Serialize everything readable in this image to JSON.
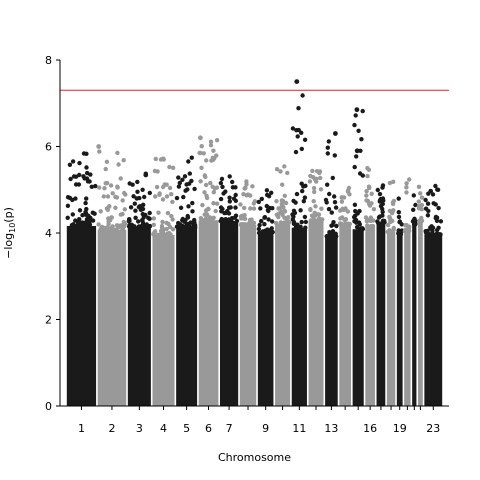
{
  "chart_data": {
    "type": "scatter",
    "subtype": "manhattan",
    "title": "",
    "xlabel": "Chromosome",
    "ylabel": "−log10(p)",
    "ylim": [
      0,
      8
    ],
    "yticks": [
      0,
      2,
      4,
      6,
      8
    ],
    "significance_threshold": 7.3,
    "threshold_color": "#d62728",
    "colors": [
      "#1a1a1a",
      "#999999"
    ],
    "grid": false,
    "legend": "none",
    "chromosome_tick_labels": [
      "1",
      "2",
      "3",
      "4",
      "5",
      "6",
      "7",
      "9",
      "11",
      "13",
      "16",
      "19",
      "23"
    ],
    "chromosomes": [
      {
        "chr": "1",
        "length": 248,
        "color": "#1a1a1a",
        "max": 5.85
      },
      {
        "chr": "2",
        "length": 242,
        "color": "#999999",
        "max": 6.0
      },
      {
        "chr": "3",
        "length": 198,
        "color": "#1a1a1a",
        "max": 5.4
      },
      {
        "chr": "4",
        "length": 190,
        "color": "#999999",
        "max": 5.9
      },
      {
        "chr": "5",
        "length": 181,
        "color": "#1a1a1a",
        "max": 5.75
      },
      {
        "chr": "6",
        "length": 171,
        "color": "#999999",
        "max": 6.2
      },
      {
        "chr": "7",
        "length": 159,
        "color": "#1a1a1a",
        "max": 5.5
      },
      {
        "chr": "8",
        "length": 145,
        "color": "#999999",
        "max": 5.25
      },
      {
        "chr": "9",
        "length": 138,
        "color": "#1a1a1a",
        "max": 5.1
      },
      {
        "chr": "10",
        "length": 134,
        "color": "#999999",
        "max": 5.7
      },
      {
        "chr": "11",
        "length": 135,
        "color": "#1a1a1a",
        "max": 7.5
      },
      {
        "chr": "12",
        "length": 133,
        "color": "#999999",
        "max": 5.55
      },
      {
        "chr": "13",
        "length": 114,
        "color": "#1a1a1a",
        "max": 6.3
      },
      {
        "chr": "14",
        "length": 107,
        "color": "#999999",
        "max": 5.2
      },
      {
        "chr": "15",
        "length": 102,
        "color": "#1a1a1a",
        "max": 6.85
      },
      {
        "chr": "16",
        "length": 90,
        "color": "#999999",
        "max": 5.5
      },
      {
        "chr": "17",
        "length": 83,
        "color": "#1a1a1a",
        "max": 5.35
      },
      {
        "chr": "18",
        "length": 80,
        "color": "#999999",
        "max": 5.2
      },
      {
        "chr": "19",
        "length": 59,
        "color": "#1a1a1a",
        "max": 5.0
      },
      {
        "chr": "20",
        "length": 64,
        "color": "#999999",
        "max": 5.3
      },
      {
        "chr": "21",
        "length": 47,
        "color": "#1a1a1a",
        "max": 5.15
      },
      {
        "chr": "22",
        "length": 51,
        "color": "#999999",
        "max": 5.2
      },
      {
        "chr": "23",
        "length": 156,
        "color": "#1a1a1a",
        "max": 5.1
      }
    ],
    "top_hits": [
      {
        "chr": "11",
        "pos_fraction": 0.35,
        "value": 7.5
      },
      {
        "chr": "15",
        "pos_fraction": 0.4,
        "value": 6.85
      },
      {
        "chr": "13",
        "pos_fraction": 0.78,
        "value": 6.3
      },
      {
        "chr": "6",
        "pos_fraction": 0.12,
        "value": 6.2
      },
      {
        "chr": "2",
        "pos_fraction": 0.06,
        "value": 6.0
      },
      {
        "chr": "15",
        "pos_fraction": 0.42,
        "value": 5.9
      }
    ]
  }
}
